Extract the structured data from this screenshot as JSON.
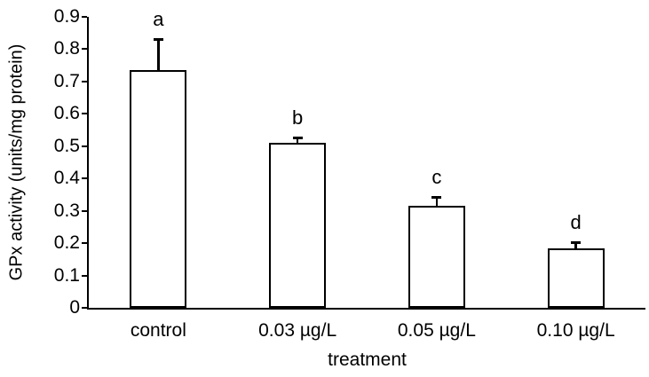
{
  "figure": {
    "background": "#ffffff",
    "text_color": "#000000"
  },
  "chart_data": {
    "type": "bar",
    "title": "",
    "xlabel": "treatment",
    "ylabel": "GPx activity (units/mg protein)",
    "categories": [
      "control",
      "0.03 µg/L",
      "0.05 µg/L",
      "0.10 µg/L"
    ],
    "values": [
      0.735,
      0.51,
      0.315,
      0.185
    ],
    "error_plus": [
      0.1,
      0.02,
      0.03,
      0.02
    ],
    "sig_letters": [
      "a",
      "b",
      "c",
      "d"
    ],
    "ylim": [
      0,
      0.9
    ],
    "ytick_step": 0.1,
    "ytick_labels": [
      "0",
      "0.1",
      "0.2",
      "0.3",
      "0.4",
      "0.5",
      "0.6",
      "0.7",
      "0.8",
      "0.9"
    ],
    "grid": false,
    "legend": "none",
    "bar_fill": "#ffffff",
    "bar_border_color": "#000000"
  }
}
